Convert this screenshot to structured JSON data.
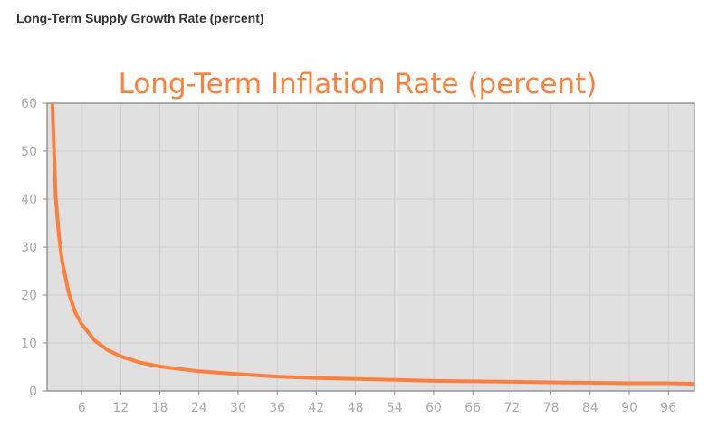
{
  "page": {
    "heading": "Long-Term Supply Growth Rate (percent)"
  },
  "chart_data": {
    "type": "line",
    "title": "Long-Term Inflation Rate (percent)",
    "xlabel": "",
    "ylabel": "",
    "xlim": [
      0.7,
      100
    ],
    "ylim": [
      0,
      60
    ],
    "x_ticks": [
      6,
      12,
      18,
      24,
      30,
      36,
      42,
      48,
      54,
      60,
      66,
      72,
      78,
      84,
      90,
      96
    ],
    "y_ticks": [
      0,
      10,
      20,
      30,
      40,
      50,
      60
    ],
    "grid": true,
    "legend": "none",
    "colors": {
      "line": "#ff7f3a",
      "plot_background": "#e0e0e0",
      "grid": "#cccccc",
      "axis": "#888888",
      "tick_text": "#aaaaaa",
      "title": "#ff7f3a"
    },
    "series": [
      {
        "x": [
          1.5,
          2,
          2.5,
          3,
          4,
          5,
          6,
          8,
          10,
          12,
          15,
          18,
          24,
          30,
          36,
          42,
          48,
          54,
          60,
          66,
          72,
          78,
          84,
          90,
          96,
          100
        ],
        "values": [
          60,
          40.7,
          32.4,
          27,
          20.5,
          16.4,
          13.9,
          10.5,
          8.5,
          7.2,
          5.9,
          5.1,
          4.1,
          3.5,
          3.0,
          2.7,
          2.5,
          2.3,
          2.1,
          2.0,
          1.9,
          1.8,
          1.7,
          1.6,
          1.6,
          1.5
        ]
      }
    ]
  }
}
